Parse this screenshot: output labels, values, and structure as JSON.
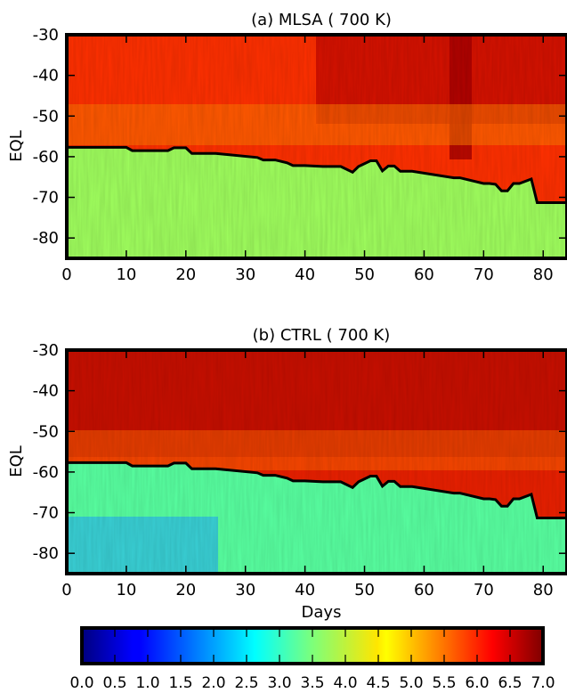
{
  "figure": {
    "xlabel": "Days",
    "colorbar": {
      "min": 0.0,
      "max": 7.0,
      "step": 0.5,
      "tick_labels": [
        "0.0",
        "0.5",
        "1.0",
        "1.5",
        "2.0",
        "2.5",
        "3.0",
        "3.5",
        "4.0",
        "4.5",
        "5.0",
        "5.5",
        "6.0",
        "6.5",
        "7.0"
      ],
      "colormap": "jet"
    }
  },
  "chart_data": [
    {
      "type": "heatmap",
      "title": "(a) MLSA ( 700 K)",
      "xlabel": "",
      "ylabel": "EQL",
      "xlim": [
        0,
        84
      ],
      "ylim": [
        -85,
        -30
      ],
      "xticks": [
        0,
        10,
        20,
        30,
        40,
        50,
        60,
        70,
        80
      ],
      "yticks": [
        -30,
        -40,
        -50,
        -60,
        -70,
        -80
      ],
      "ytick_labels": [
        "-30",
        "-40",
        "-50",
        "-60",
        "-70",
        "-80"
      ],
      "colorbar_range": [
        0,
        7
      ],
      "field_summary": [
        {
          "region": "EQL -30 to -55",
          "value_range": [
            6.0,
            6.8
          ]
        },
        {
          "region": "EQL -58 to -85",
          "value_range": [
            3.2,
            4.2
          ]
        }
      ],
      "boundary_line": {
        "color": "#000000",
        "days": [
          0,
          10,
          11,
          17,
          18,
          20,
          21,
          25,
          32,
          33,
          35,
          37,
          38,
          40,
          43,
          46,
          48,
          49,
          51,
          52,
          53,
          54,
          55,
          56,
          58,
          65,
          66,
          70,
          71,
          72,
          73,
          74,
          75,
          76,
          78,
          79,
          84
        ],
        "eql": [
          -57.7,
          -57.7,
          -58.5,
          -58.5,
          -57.8,
          -57.8,
          -59.2,
          -59.2,
          -60.2,
          -60.8,
          -60.8,
          -61.5,
          -62.2,
          -62.2,
          -62.4,
          -62.4,
          -63.8,
          -62.4,
          -61.0,
          -61.0,
          -63.5,
          -62.3,
          -62.3,
          -63.6,
          -63.6,
          -65.2,
          -65.2,
          -66.6,
          -66.6,
          -66.8,
          -68.4,
          -68.4,
          -66.6,
          -66.6,
          -65.5,
          -71.3,
          -71.3
        ]
      }
    },
    {
      "type": "heatmap",
      "title": "(b) CTRL ( 700 K)",
      "xlabel": "Days",
      "ylabel": "EQL",
      "xlim": [
        0,
        84
      ],
      "ylim": [
        -85,
        -30
      ],
      "xticks": [
        0,
        10,
        20,
        30,
        40,
        50,
        60,
        70,
        80
      ],
      "yticks": [
        -30,
        -40,
        -50,
        -60,
        -70,
        -80
      ],
      "ytick_labels": [
        "-30",
        "-40",
        "-50",
        "-60",
        "-70",
        "-80"
      ],
      "colorbar_range": [
        0,
        7
      ],
      "field_summary": [
        {
          "region": "EQL -30 to -55",
          "value_range": [
            6.2,
            6.9
          ]
        },
        {
          "region": "EQL -58 to -85",
          "value_range": [
            2.2,
            3.8
          ]
        }
      ],
      "boundary_line": {
        "color": "#000000",
        "days": [
          0,
          10,
          11,
          17,
          18,
          20,
          21,
          25,
          32,
          33,
          35,
          37,
          38,
          40,
          43,
          46,
          48,
          49,
          51,
          52,
          53,
          54,
          55,
          56,
          58,
          65,
          66,
          70,
          71,
          72,
          73,
          74,
          75,
          76,
          78,
          79,
          84
        ],
        "eql": [
          -57.7,
          -57.7,
          -58.5,
          -58.5,
          -57.8,
          -57.8,
          -59.2,
          -59.2,
          -60.2,
          -60.8,
          -60.8,
          -61.5,
          -62.2,
          -62.2,
          -62.4,
          -62.4,
          -63.8,
          -62.4,
          -61.0,
          -61.0,
          -63.5,
          -62.3,
          -62.3,
          -63.6,
          -63.6,
          -65.2,
          -65.2,
          -66.6,
          -66.6,
          -66.8,
          -68.4,
          -68.4,
          -66.6,
          -66.6,
          -65.5,
          -71.3,
          -71.3
        ]
      }
    }
  ]
}
